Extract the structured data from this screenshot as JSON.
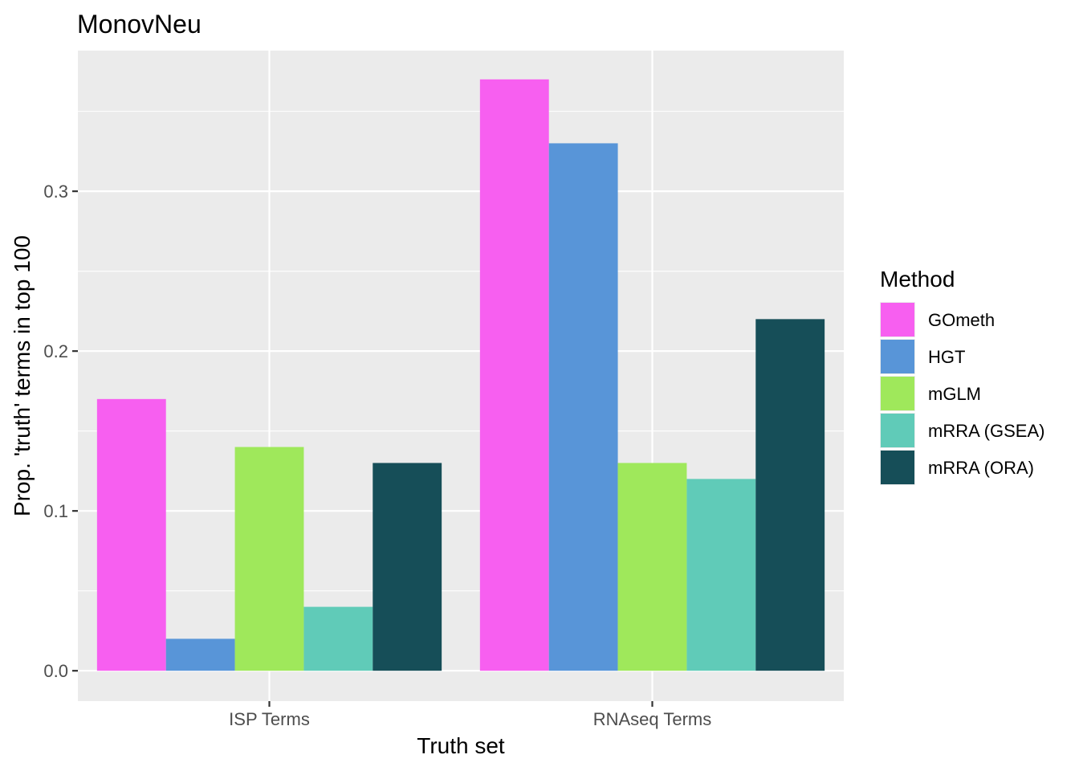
{
  "chart_data": {
    "type": "bar",
    "title": "MonovNeu",
    "xlabel": "Truth set",
    "ylabel": "Prop. 'truth' terms in top 100",
    "categories": [
      "ISP Terms",
      "RNAseq Terms"
    ],
    "series": [
      {
        "name": "GOmeth",
        "color": "#f75ff0",
        "values": [
          0.17,
          0.37
        ]
      },
      {
        "name": "HGT",
        "color": "#5895d8",
        "values": [
          0.02,
          0.33
        ]
      },
      {
        "name": "mGLM",
        "color": "#9fe85b",
        "values": [
          0.14,
          0.13
        ]
      },
      {
        "name": "mRRA (GSEA)",
        "color": "#60cbb8",
        "values": [
          0.04,
          0.12
        ]
      },
      {
        "name": "mRRA (ORA)",
        "color": "#164e58",
        "values": [
          0.13,
          0.22
        ]
      }
    ],
    "ylim": [
      -0.019,
      0.388
    ],
    "yticks": [
      0.0,
      0.1,
      0.2,
      0.3
    ],
    "ytick_labels": [
      "0.0",
      "0.1",
      "0.2",
      "0.3"
    ],
    "grid": true,
    "panel_color": "#ebebeb",
    "legend": {
      "title": "Method",
      "position": "right"
    }
  }
}
